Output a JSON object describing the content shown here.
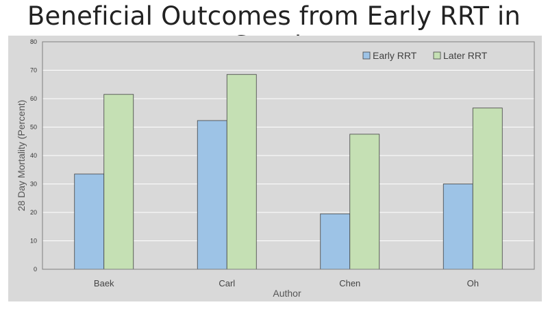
{
  "title": "Beneficial Outcomes from Early RRT in Sepsis",
  "chart_data": {
    "type": "bar",
    "categories": [
      "Baek",
      "Carl",
      "Chen",
      "Oh"
    ],
    "series": [
      {
        "name": "Early RRT",
        "values": [
          33.5,
          52.3,
          19.5,
          30.0
        ],
        "color": "#9dc3e6"
      },
      {
        "name": "Later RRT",
        "values": [
          61.5,
          68.5,
          47.5,
          56.7
        ],
        "color": "#c5e0b4"
      }
    ],
    "xlabel": "Author",
    "ylabel": "28 Day Mortality (Percent)",
    "ylim": [
      0,
      80
    ],
    "yticks": [
      0,
      10,
      20,
      30,
      40,
      50,
      60,
      70,
      80
    ],
    "grid": true,
    "legend_position": "top-right",
    "background": "#d9d9d9"
  }
}
